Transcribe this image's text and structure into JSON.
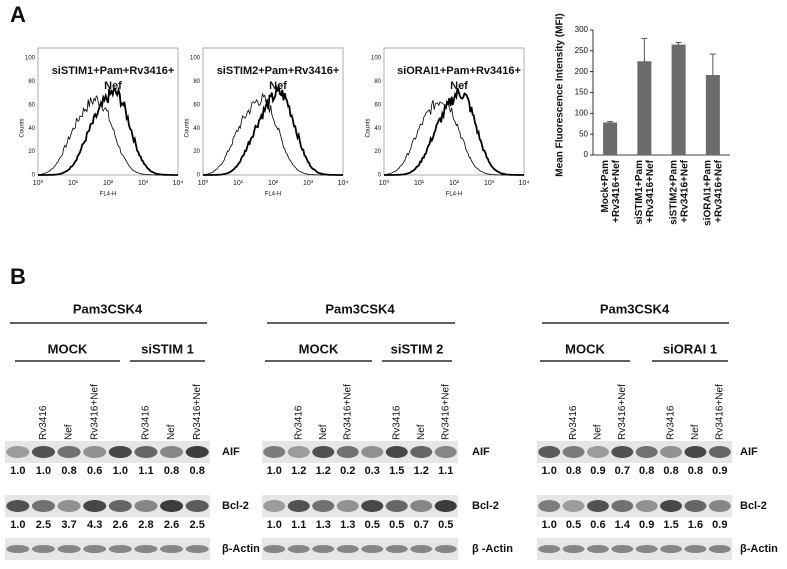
{
  "panel_a": {
    "label": "A",
    "histograms": [
      {
        "title_lines": [
          "siSTIM1+Pam+Rv3416+",
          "Nef"
        ]
      },
      {
        "title_lines": [
          "siSTIM2+Pam+Rv3416+",
          "Nef"
        ]
      },
      {
        "title_lines": [
          "siORAI1+Pam+Rv3416+",
          "Nef"
        ]
      }
    ],
    "histogram_axes": {
      "y_label": "Counts",
      "x_label": "FL4-H",
      "yticks": [
        "0",
        "20",
        "40",
        "60",
        "80",
        "100"
      ],
      "xticks": [
        "10⁰",
        "10¹",
        "10²",
        "10³",
        "10⁴"
      ]
    }
  },
  "chart_data": {
    "type": "bar",
    "ylabel": "Mean Fluorescence Intensity (MFI)",
    "categories": [
      [
        "Mock+Pam",
        "+Rv3416+Nef"
      ],
      [
        "siSTIM1+Pam",
        "+Rv3416+Nef"
      ],
      [
        "siSTIM2+Pam",
        "+Rv3416+Nef"
      ],
      [
        "siORAI1+Pam",
        "+Rv3416+Nef"
      ]
    ],
    "values": [
      78,
      225,
      265,
      192
    ],
    "errors": [
      2,
      55,
      5,
      50
    ],
    "color": "#6b6b6b",
    "ylim": [
      0,
      300
    ],
    "yticks": [
      0,
      50,
      100,
      150,
      200,
      250,
      300
    ]
  },
  "panel_b": {
    "label": "B",
    "blots": [
      {
        "treatment": "Pam3CSK4",
        "groups": [
          "MOCK",
          "siSTIM 1"
        ],
        "lanes": [
          null,
          "Rv3416",
          "Nef",
          "Rv3416+Nef",
          null,
          "Rv3416",
          "Nef",
          "Rv3416+Nef"
        ],
        "rows": [
          {
            "name": "AIF",
            "values": [
              "1.0",
              "1.0",
              "0.8",
              "0.6",
              "1.0",
              "1.1",
              "0.8",
              "0.8"
            ]
          },
          {
            "name": "Bcl-2",
            "values": [
              "1.0",
              "2.5",
              "3.7",
              "4.3",
              "2.6",
              "2.8",
              "2.6",
              "2.5"
            ]
          },
          {
            "name": "β-Actin"
          }
        ]
      },
      {
        "treatment": "Pam3CSK4",
        "groups": [
          "MOCK",
          "siSTIM 2"
        ],
        "lanes": [
          null,
          "Rv3416",
          "Nef",
          "Rv3416+Nef",
          null,
          "Rv3416",
          "Nef",
          "Rv3416+Nef"
        ],
        "rows": [
          {
            "name": "AIF",
            "values": [
              "1.0",
              "1.2",
              "1.2",
              "0.2",
              "0.3",
              "1.5",
              "1.2",
              "1.1"
            ]
          },
          {
            "name": "Bcl-2",
            "values": [
              "1.0",
              "1.1",
              "1.3",
              "1.3",
              "0.5",
              "0.5",
              "0.7",
              "0.5"
            ]
          },
          {
            "name": "β -Actin"
          }
        ]
      },
      {
        "treatment": "Pam3CSK4",
        "groups": [
          "MOCK",
          "siORAI 1"
        ],
        "lanes": [
          null,
          "Rv3416",
          "Nef",
          "Rv3416+Nef",
          null,
          "Rv3416",
          "Nef",
          "Rv3416+Nef"
        ],
        "rows": [
          {
            "name": "AIF",
            "values": [
              "1.0",
              "0.8",
              "0.9",
              "0.7",
              "0.8",
              "0.8",
              "0.8",
              "0.9"
            ]
          },
          {
            "name": "Bcl-2",
            "values": [
              "1.0",
              "0.5",
              "0.6",
              "1.4",
              "0.9",
              "1.5",
              "1.6",
              "0.9"
            ]
          },
          {
            "name": "β-Actin"
          }
        ]
      }
    ]
  }
}
